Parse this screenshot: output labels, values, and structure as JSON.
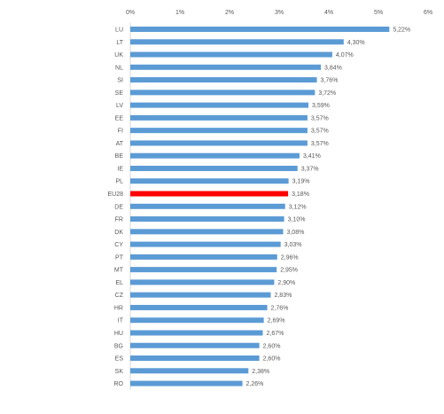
{
  "chart_data": {
    "type": "bar",
    "orientation": "horizontal",
    "categories": [
      "LU",
      "LT",
      "UK",
      "NL",
      "SI",
      "SE",
      "LV",
      "EE",
      "FI",
      "AT",
      "BE",
      "IE",
      "PL",
      "EU28",
      "DE",
      "FR",
      "DK",
      "CY",
      "PT",
      "MT",
      "EL",
      "CZ",
      "HR",
      "IT",
      "HU",
      "BG",
      "ES",
      "SK",
      "RO"
    ],
    "values": [
      5.22,
      4.3,
      4.07,
      3.84,
      3.76,
      3.72,
      3.59,
      3.57,
      3.57,
      3.57,
      3.41,
      3.37,
      3.19,
      3.18,
      3.12,
      3.1,
      3.08,
      3.03,
      2.96,
      2.95,
      2.9,
      2.83,
      2.76,
      2.69,
      2.67,
      2.6,
      2.6,
      2.38,
      2.26
    ],
    "value_labels": [
      "5,22%",
      "4,30%",
      "4,07%",
      "3,84%",
      "3,76%",
      "3,72%",
      "3,59%",
      "3,57%",
      "3,57%",
      "3,57%",
      "3,41%",
      "3,37%",
      "3,19%",
      "3,18%",
      "3,12%",
      "3,10%",
      "3,08%",
      "3,03%",
      "2,96%",
      "2,95%",
      "2,90%",
      "2,83%",
      "2,76%",
      "2,69%",
      "2,67%",
      "2,60%",
      "2,60%",
      "2,38%",
      "2,26%"
    ],
    "xlim": [
      0,
      6
    ],
    "x_ticks": [
      0,
      1,
      2,
      3,
      4,
      5,
      6
    ],
    "x_tick_labels": [
      "0%",
      "1%",
      "2%",
      "3%",
      "4%",
      "5%",
      "6%"
    ],
    "x_axis_position": "top",
    "grid": false,
    "legend": "none",
    "highlight_category": "EU28",
    "colors": {
      "bar": "#5b9bd5",
      "highlight": "#ff0000",
      "text": "#595959",
      "axis": "#d9d9d9"
    }
  }
}
